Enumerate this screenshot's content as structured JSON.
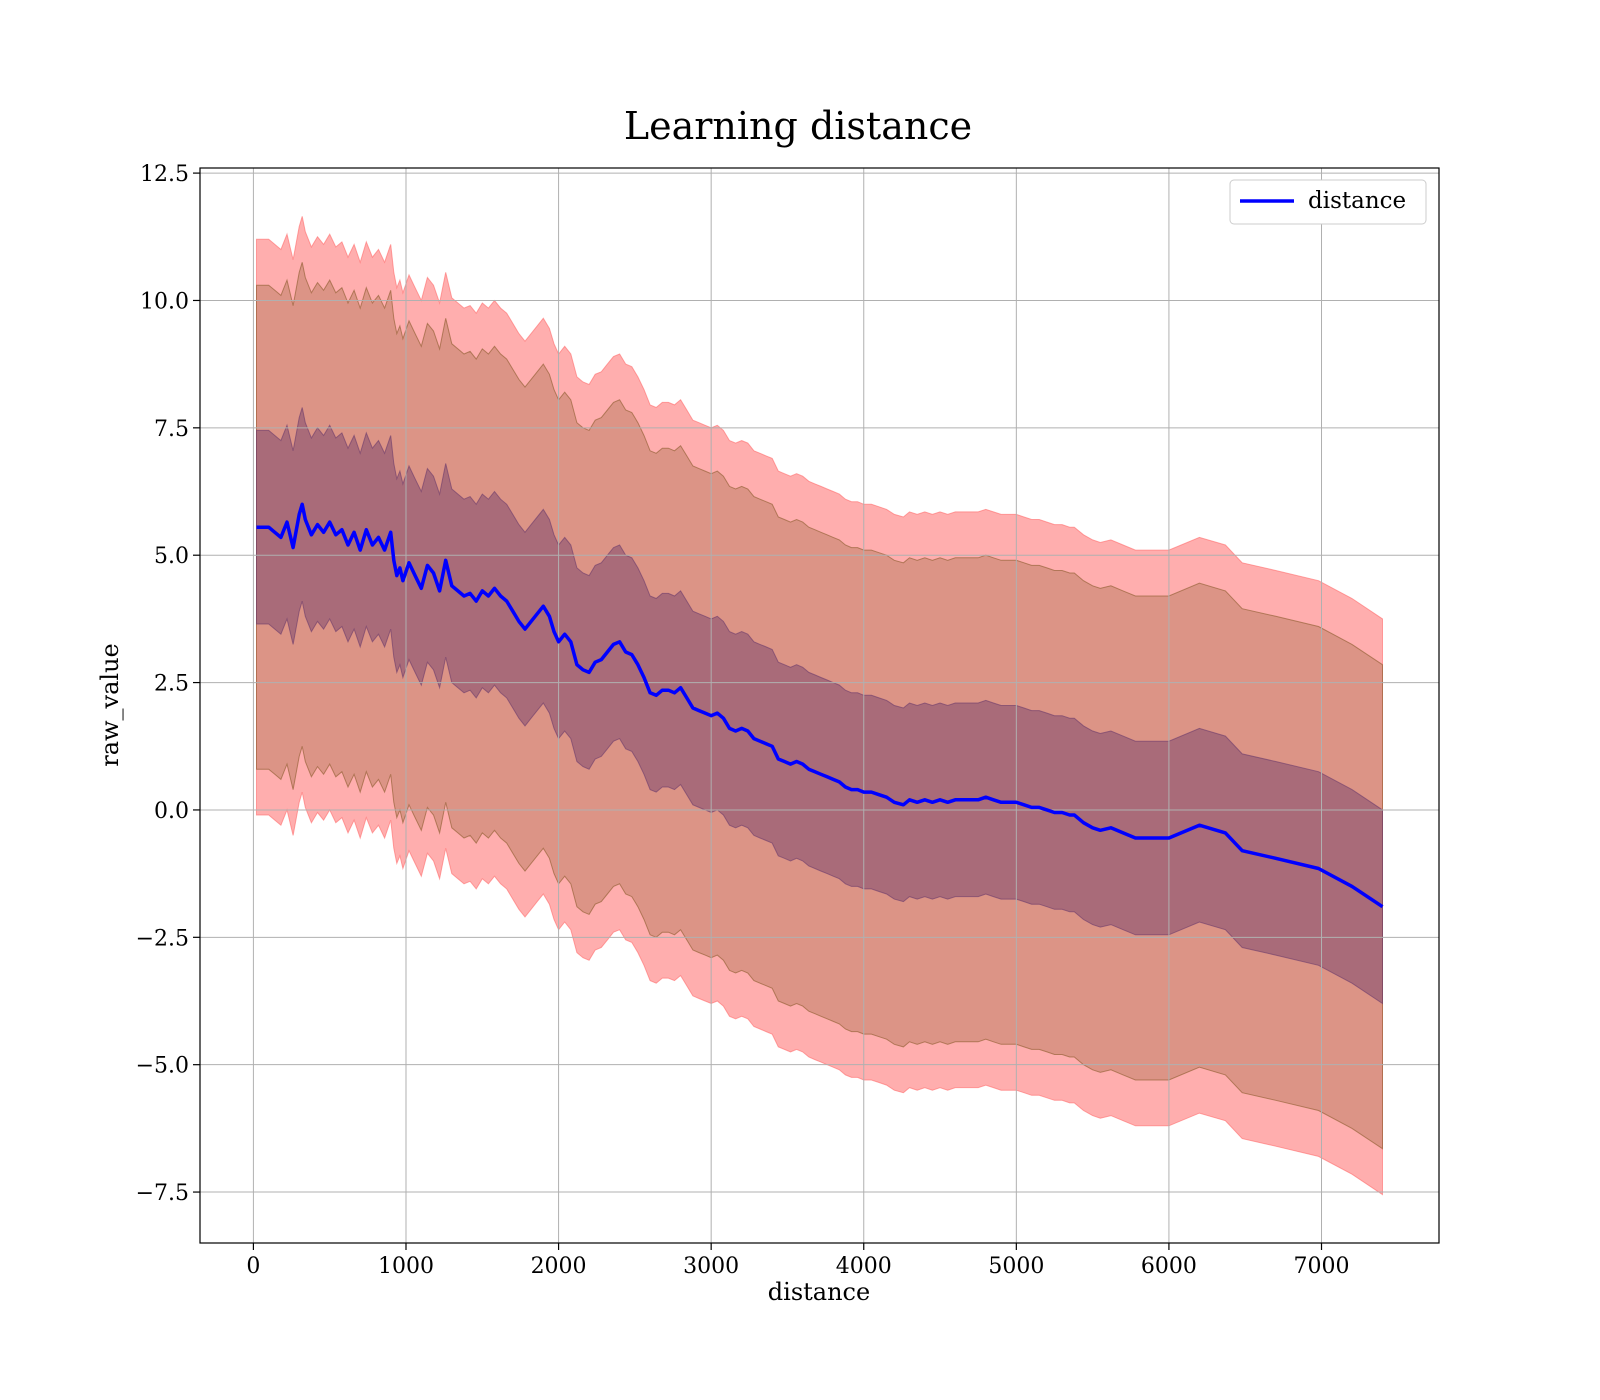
{
  "chart_data": {
    "type": "line",
    "title": "Learning distance",
    "xlabel": "distance",
    "ylabel": "raw_value",
    "xlim": [
      -350,
      7770
    ],
    "ylim": [
      -8.5,
      12.6
    ],
    "xticks": [
      0,
      1000,
      2000,
      3000,
      4000,
      5000,
      6000,
      7000
    ],
    "yticks": [
      -7.5,
      -5.0,
      -2.5,
      0.0,
      2.5,
      5.0,
      7.5,
      10.0,
      12.5
    ],
    "xtick_labels": [
      "0",
      "1000",
      "2000",
      "3000",
      "4000",
      "5000",
      "6000",
      "7000"
    ],
    "ytick_labels": [
      "−7.5",
      "−5.0",
      "−2.5",
      "0.0",
      "2.5",
      "5.0",
      "7.5",
      "10.0",
      "12.5"
    ],
    "grid": true,
    "legend_position": "top-right",
    "series": [
      {
        "name": "distance",
        "color": "#0000ff",
        "x": [
          20,
          60,
          100,
          140,
          180,
          220,
          260,
          300,
          320,
          340,
          380,
          420,
          460,
          500,
          540,
          580,
          620,
          660,
          700,
          740,
          780,
          820,
          860,
          900,
          920,
          940,
          960,
          980,
          1020,
          1060,
          1100,
          1140,
          1180,
          1220,
          1260,
          1300,
          1340,
          1380,
          1420,
          1460,
          1500,
          1540,
          1580,
          1620,
          1660,
          1700,
          1740,
          1780,
          1820,
          1860,
          1900,
          1940,
          1970,
          2000,
          2040,
          2080,
          2120,
          2160,
          2200,
          2240,
          2280,
          2320,
          2360,
          2400,
          2440,
          2480,
          2520,
          2560,
          2600,
          2640,
          2680,
          2720,
          2760,
          2800,
          2840,
          2880,
          2920,
          2960,
          3000,
          3040,
          3080,
          3120,
          3160,
          3200,
          3240,
          3280,
          3320,
          3360,
          3400,
          3440,
          3480,
          3520,
          3560,
          3600,
          3640,
          3680,
          3720,
          3760,
          3800,
          3840,
          3880,
          3920,
          3960,
          4000,
          4050,
          4100,
          4150,
          4200,
          4260,
          4300,
          4350,
          4400,
          4450,
          4500,
          4550,
          4600,
          4650,
          4700,
          4750,
          4800,
          4850,
          4900,
          4950,
          5000,
          5050,
          5100,
          5150,
          5200,
          5250,
          5300,
          5350,
          5380,
          5440,
          5500,
          5550,
          5620,
          5700,
          5780,
          5870,
          6000,
          6200,
          6370,
          6480,
          6700,
          6980,
          7200,
          7400
        ],
        "y": [
          5.55,
          5.55,
          5.55,
          5.45,
          5.35,
          5.65,
          5.15,
          5.8,
          6.0,
          5.7,
          5.4,
          5.6,
          5.45,
          5.65,
          5.4,
          5.5,
          5.2,
          5.45,
          5.1,
          5.5,
          5.2,
          5.35,
          5.1,
          5.45,
          4.9,
          4.6,
          4.75,
          4.5,
          4.85,
          4.6,
          4.35,
          4.8,
          4.65,
          4.3,
          4.9,
          4.4,
          4.3,
          4.2,
          4.25,
          4.1,
          4.3,
          4.2,
          4.35,
          4.2,
          4.1,
          3.9,
          3.7,
          3.55,
          3.7,
          3.85,
          4.0,
          3.8,
          3.5,
          3.3,
          3.45,
          3.3,
          2.85,
          2.75,
          2.7,
          2.9,
          2.95,
          3.1,
          3.25,
          3.3,
          3.1,
          3.05,
          2.85,
          2.6,
          2.3,
          2.25,
          2.35,
          2.35,
          2.3,
          2.4,
          2.2,
          2.0,
          1.95,
          1.9,
          1.85,
          1.9,
          1.8,
          1.6,
          1.55,
          1.6,
          1.55,
          1.4,
          1.35,
          1.3,
          1.25,
          1.0,
          0.95,
          0.9,
          0.95,
          0.9,
          0.8,
          0.75,
          0.7,
          0.65,
          0.6,
          0.55,
          0.45,
          0.4,
          0.4,
          0.35,
          0.35,
          0.3,
          0.25,
          0.15,
          0.1,
          0.2,
          0.15,
          0.2,
          0.15,
          0.2,
          0.15,
          0.2,
          0.2,
          0.2,
          0.2,
          0.25,
          0.2,
          0.15,
          0.15,
          0.15,
          0.1,
          0.05,
          0.05,
          0.0,
          -0.05,
          -0.05,
          -0.1,
          -0.1,
          -0.25,
          -0.35,
          -0.4,
          -0.35,
          -0.45,
          -0.55,
          -0.55,
          -0.55,
          -0.3,
          -0.45,
          -0.8,
          -0.95,
          -1.15,
          -1.5,
          -1.9
        ]
      }
    ],
    "bands": [
      {
        "fill": "#ff6b6b",
        "offset": 5.65,
        "opacity": 0.55
      },
      {
        "fill": "#8b5a2b",
        "offset": 4.75,
        "opacity": 0.3
      },
      {
        "fill": "#6b3a6b",
        "offset": 1.9,
        "opacity": 0.45
      }
    ]
  }
}
